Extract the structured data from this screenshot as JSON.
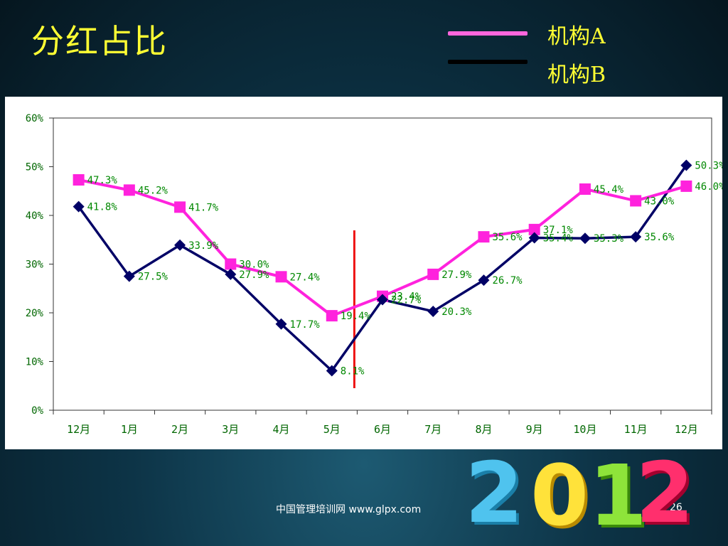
{
  "slide": {
    "title": "分红占比",
    "footer": "中国管理培训网  www.glpx.com",
    "page_number": "26",
    "decoration_icon": "2012-3d-numerals-icon"
  },
  "colors": {
    "series_a": "#ff22dd",
    "series_b": "#000066",
    "title_text": "#ffff33",
    "divider": "#ee1111",
    "data_label": "#008800",
    "axis_label": "#006600"
  },
  "chart_data": {
    "type": "line",
    "title": "",
    "xlabel": "",
    "ylabel": "",
    "categories": [
      "12月",
      "1月",
      "2月",
      "3月",
      "4月",
      "5月",
      "6月",
      "7月",
      "8月",
      "9月",
      "10月",
      "11月",
      "12月"
    ],
    "ylim": [
      0,
      60
    ],
    "yticks": [
      "0%",
      "10%",
      "20%",
      "30%",
      "40%",
      "50%",
      "60%"
    ],
    "grid": false,
    "legend_position": "top-right",
    "divider_after_category_index": 5,
    "series": [
      {
        "name": "机构A",
        "marker": "square",
        "values": [
          47.3,
          45.2,
          41.7,
          30.0,
          27.4,
          19.4,
          23.4,
          27.9,
          35.6,
          37.1,
          45.4,
          43.0,
          46.0
        ],
        "labels": [
          "47.3%",
          "45.2%",
          "41.7%",
          "30.0%",
          "27.4%",
          "19.4%",
          "23.4%",
          "27.9%",
          "35.6%",
          "37.1%",
          "45.4%",
          "43.0%",
          "46.0%"
        ]
      },
      {
        "name": "机构B",
        "marker": "diamond",
        "values": [
          41.8,
          27.5,
          33.9,
          27.9,
          17.7,
          8.1,
          22.7,
          20.3,
          26.7,
          35.4,
          35.3,
          35.6,
          50.3
        ],
        "labels": [
          "41.8%",
          "27.5%",
          "33.9%",
          "27.9%",
          "17.7%",
          "8.1%",
          "22.7%",
          "20.3%",
          "26.7%",
          "35.4%",
          "35.3%",
          "35.6%",
          "50.3%"
        ]
      }
    ]
  }
}
